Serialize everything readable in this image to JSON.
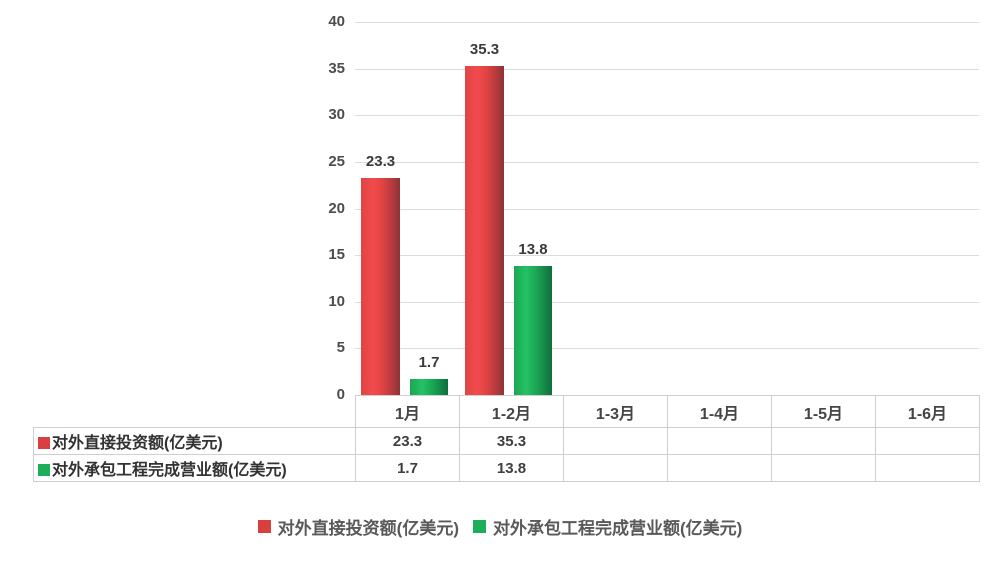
{
  "chart_data": {
    "type": "bar",
    "title": "",
    "xlabel": "",
    "ylabel": "",
    "categories": [
      "1月",
      "1-2月",
      "1-3月",
      "1-4月",
      "1-5月",
      "1-6月"
    ],
    "series": [
      {
        "name": "对外直接投资额(亿美元)",
        "color": "#d8403f",
        "values": [
          23.3,
          35.3,
          null,
          null,
          null,
          null
        ]
      },
      {
        "name": "对外承包工程完成营业额(亿美元)",
        "color": "#1cae58",
        "values": [
          1.7,
          13.8,
          null,
          null,
          null,
          null
        ]
      }
    ],
    "ylim": [
      0,
      40
    ],
    "ytick_step": 5,
    "yticks": [
      0,
      5,
      10,
      15,
      20,
      25,
      30,
      35,
      40
    ],
    "grid": true,
    "data_labels": true,
    "legend_position": "bottom",
    "data_table_shown": true
  }
}
